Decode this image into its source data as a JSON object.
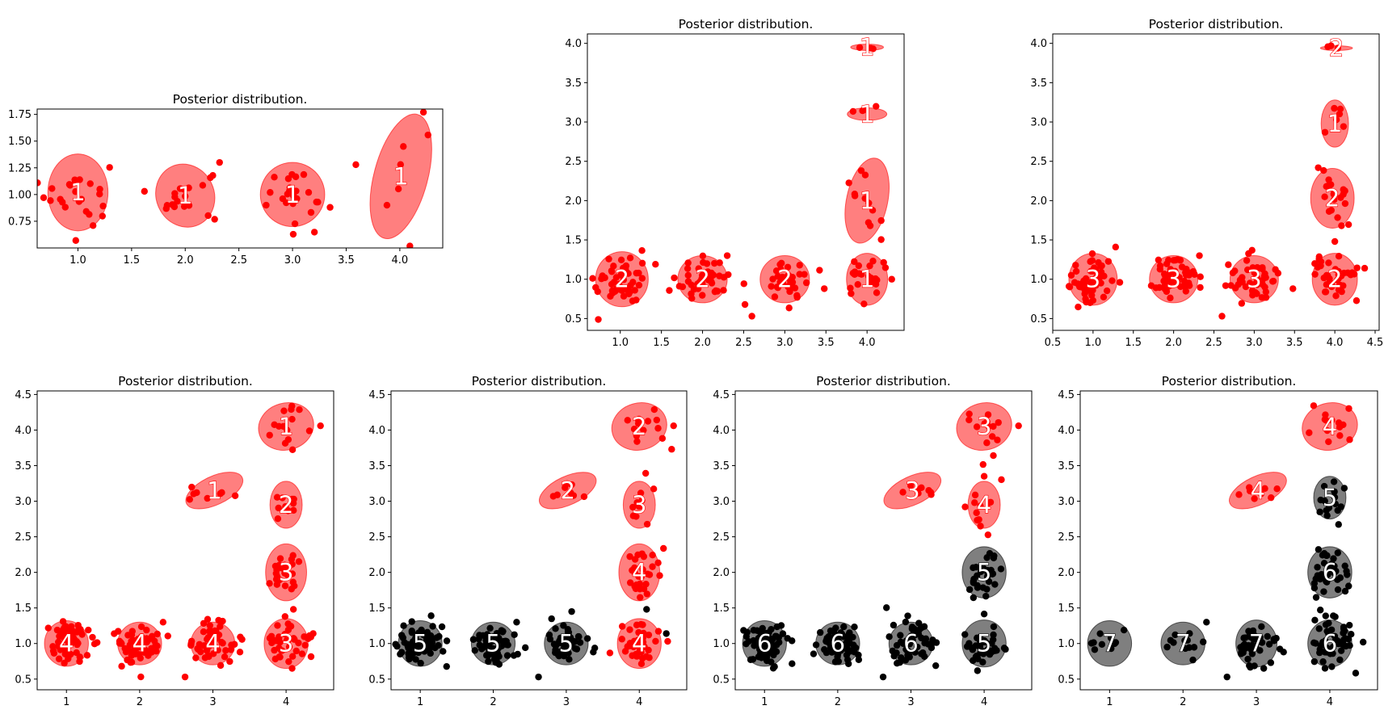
{
  "figure": {
    "title": "Posterior distribution.",
    "colors": {
      "red": "#ff0000",
      "black": "#000000",
      "ellipse_red": "#ff0000",
      "ellipse_black": "#000000",
      "frame": "#000000",
      "label_text": "#ffffff"
    }
  },
  "chart_data": [
    {
      "type": "scatter",
      "title": "Posterior distribution.",
      "xlim": [
        0.62,
        4.4
      ],
      "ylim": [
        0.5,
        1.8
      ],
      "xticks": [
        1.0,
        1.5,
        2.0,
        2.5,
        3.0,
        3.5,
        4.0
      ],
      "xtick_labels": [
        "1.0",
        "1.5",
        "2.0",
        "2.5",
        "3.0",
        "3.5",
        "4.0"
      ],
      "yticks": [
        0.75,
        1.0,
        1.25,
        1.5,
        1.75
      ],
      "ytick_labels": [
        "0.75",
        "1.00",
        "1.25",
        "1.50",
        "1.75"
      ],
      "clusters": [
        {
          "label": "1",
          "color": "red",
          "cx": 1.0,
          "cy": 1.02,
          "rx": 0.28,
          "ry": 0.36,
          "angle": 0,
          "n": 24,
          "sx": 0.15,
          "sy": 0.15
        },
        {
          "label": "1",
          "color": "red",
          "cx": 2.0,
          "cy": 0.99,
          "rx": 0.27,
          "ry": 0.3,
          "angle": -25,
          "n": 18,
          "sx": 0.15,
          "sy": 0.14
        },
        {
          "label": "1",
          "color": "red",
          "cx": 3.0,
          "cy": 1.0,
          "rx": 0.3,
          "ry": 0.3,
          "angle": 0,
          "n": 26,
          "sx": 0.14,
          "sy": 0.13
        },
        {
          "label": "1",
          "color": "red",
          "cx": 4.01,
          "cy": 1.17,
          "rx": 0.25,
          "ry": 0.6,
          "angle": 15,
          "n": 6,
          "sx": 0.12,
          "sy": 0.3
        }
      ],
      "extra_points": [
        [
          1.62,
          1.03
        ],
        [
          2.32,
          1.3
        ],
        [
          0.98,
          0.57
        ],
        [
          3.35,
          0.88
        ],
        [
          4.22,
          1.77
        ],
        [
          3.88,
          0.9
        ]
      ]
    },
    {
      "type": "scatter",
      "title": "Posterior distribution.",
      "xlim": [
        0.6,
        4.45
      ],
      "ylim": [
        0.35,
        4.12
      ],
      "xticks": [
        1.0,
        1.5,
        2.0,
        2.5,
        3.0,
        3.5,
        4.0
      ],
      "xtick_labels": [
        "1.0",
        "1.5",
        "2.0",
        "2.5",
        "3.0",
        "3.5",
        "4.0"
      ],
      "yticks": [
        0.5,
        1.0,
        1.5,
        2.0,
        2.5,
        3.0,
        3.5,
        4.0
      ],
      "ytick_labels": [
        "0.5",
        "1.0",
        "1.5",
        "2.0",
        "2.5",
        "3.0",
        "3.5",
        "4.0"
      ],
      "clusters": [
        {
          "label": "2",
          "color": "red",
          "cx": 1.02,
          "cy": 1.0,
          "rx": 0.32,
          "ry": 0.35,
          "angle": 0,
          "n": 48,
          "sx": 0.16,
          "sy": 0.17
        },
        {
          "label": "2",
          "color": "red",
          "cx": 2.0,
          "cy": 1.0,
          "rx": 0.3,
          "ry": 0.3,
          "angle": 0,
          "n": 44,
          "sx": 0.16,
          "sy": 0.14
        },
        {
          "label": "2",
          "color": "red",
          "cx": 3.0,
          "cy": 1.0,
          "rx": 0.3,
          "ry": 0.3,
          "angle": 0,
          "n": 36,
          "sx": 0.15,
          "sy": 0.14
        },
        {
          "label": "1",
          "color": "red",
          "cx": 4.0,
          "cy": 1.0,
          "rx": 0.25,
          "ry": 0.33,
          "angle": 0,
          "n": 22,
          "sx": 0.13,
          "sy": 0.15
        },
        {
          "label": "1",
          "color": "red",
          "cx": 4.0,
          "cy": 2.0,
          "rx": 0.25,
          "ry": 0.55,
          "angle": 12,
          "n": 12,
          "sx": 0.1,
          "sy": 0.3
        },
        {
          "label": "1",
          "color": "red",
          "cx": 4.0,
          "cy": 3.1,
          "rx": 0.24,
          "ry": 0.08,
          "angle": 0,
          "n": 4,
          "sx": 0.1,
          "sy": 0.04
        },
        {
          "label": "1",
          "color": "red",
          "cx": 4.0,
          "cy": 3.95,
          "rx": 0.2,
          "ry": 0.04,
          "angle": 0,
          "n": 3,
          "sx": 0.08,
          "sy": 0.02
        }
      ],
      "extra_points": [
        [
          2.6,
          0.53
        ],
        [
          2.3,
          1.3
        ],
        [
          3.48,
          0.88
        ],
        [
          4.3,
          1.0
        ]
      ]
    },
    {
      "type": "scatter",
      "title": "Posterior distribution.",
      "xlim": [
        0.5,
        4.55
      ],
      "ylim": [
        0.35,
        4.12
      ],
      "xticks": [
        0.5,
        1.0,
        1.5,
        2.0,
        2.5,
        3.0,
        3.5,
        4.0,
        4.5
      ],
      "xtick_labels": [
        "0.5",
        "1.0",
        "1.5",
        "2.0",
        "2.5",
        "3.0",
        "3.5",
        "4.0",
        "4.5"
      ],
      "yticks": [
        0.5,
        1.0,
        1.5,
        2.0,
        2.5,
        3.0,
        3.5,
        4.0
      ],
      "ytick_labels": [
        "0.5",
        "1.0",
        "1.5",
        "2.0",
        "2.5",
        "3.0",
        "3.5",
        "4.0"
      ],
      "clusters": [
        {
          "label": "3",
          "color": "red",
          "cx": 1.0,
          "cy": 1.0,
          "rx": 0.3,
          "ry": 0.33,
          "angle": 0,
          "n": 60,
          "sx": 0.15,
          "sy": 0.16
        },
        {
          "label": "3",
          "color": "red",
          "cx": 2.0,
          "cy": 1.0,
          "rx": 0.3,
          "ry": 0.3,
          "angle": 0,
          "n": 56,
          "sx": 0.15,
          "sy": 0.14
        },
        {
          "label": "3",
          "color": "red",
          "cx": 3.0,
          "cy": 1.0,
          "rx": 0.3,
          "ry": 0.3,
          "angle": 0,
          "n": 48,
          "sx": 0.15,
          "sy": 0.14
        },
        {
          "label": "2",
          "color": "red",
          "cx": 4.0,
          "cy": 1.0,
          "rx": 0.28,
          "ry": 0.33,
          "angle": 0,
          "n": 38,
          "sx": 0.14,
          "sy": 0.15
        },
        {
          "label": "2",
          "color": "red",
          "cx": 3.97,
          "cy": 2.03,
          "rx": 0.27,
          "ry": 0.38,
          "angle": 0,
          "n": 22,
          "sx": 0.12,
          "sy": 0.2
        },
        {
          "label": "1",
          "color": "red",
          "cx": 4.0,
          "cy": 2.98,
          "rx": 0.17,
          "ry": 0.3,
          "angle": 0,
          "n": 6,
          "sx": 0.07,
          "sy": 0.14
        },
        {
          "label": "2",
          "color": "red",
          "cx": 4.02,
          "cy": 3.94,
          "rx": 0.2,
          "ry": 0.03,
          "angle": 0,
          "n": 3,
          "sx": 0.08,
          "sy": 0.02
        }
      ],
      "extra_points": [
        [
          2.6,
          0.53
        ],
        [
          2.32,
          1.3
        ],
        [
          3.48,
          0.88
        ],
        [
          4.37,
          1.14
        ],
        [
          4.0,
          1.48
        ]
      ]
    },
    {
      "type": "scatter",
      "title": "Posterior distribution.",
      "xlim": [
        0.6,
        4.65
      ],
      "ylim": [
        0.35,
        4.55
      ],
      "xticks": [
        1,
        2,
        3,
        4
      ],
      "xtick_labels": [
        "1",
        "2",
        "3",
        "4"
      ],
      "yticks": [
        0.5,
        1.0,
        1.5,
        2.0,
        2.5,
        3.0,
        3.5,
        4.0,
        4.5
      ],
      "ytick_labels": [
        "0.5",
        "1.0",
        "1.5",
        "2.0",
        "2.5",
        "3.0",
        "3.5",
        "4.0",
        "4.5"
      ],
      "clusters": [
        {
          "label": "4",
          "color": "red",
          "cx": 1.0,
          "cy": 1.0,
          "rx": 0.3,
          "ry": 0.32,
          "angle": 0,
          "n": 70,
          "sx": 0.15,
          "sy": 0.15
        },
        {
          "label": "4",
          "color": "red",
          "cx": 2.0,
          "cy": 1.0,
          "rx": 0.3,
          "ry": 0.3,
          "angle": 0,
          "n": 60,
          "sx": 0.15,
          "sy": 0.14
        },
        {
          "label": "4",
          "color": "red",
          "cx": 3.0,
          "cy": 1.0,
          "rx": 0.3,
          "ry": 0.3,
          "angle": 0,
          "n": 52,
          "sx": 0.15,
          "sy": 0.14
        },
        {
          "label": "3",
          "color": "red",
          "cx": 4.0,
          "cy": 1.0,
          "rx": 0.3,
          "ry": 0.35,
          "angle": 0,
          "n": 40,
          "sx": 0.14,
          "sy": 0.15
        },
        {
          "label": "3",
          "color": "red",
          "cx": 4.0,
          "cy": 2.0,
          "rx": 0.28,
          "ry": 0.4,
          "angle": 0,
          "n": 28,
          "sx": 0.12,
          "sy": 0.18
        },
        {
          "label": "2",
          "color": "red",
          "cx": 4.0,
          "cy": 2.95,
          "rx": 0.22,
          "ry": 0.33,
          "angle": 0,
          "n": 10,
          "sx": 0.09,
          "sy": 0.14
        },
        {
          "label": "1",
          "color": "red",
          "cx": 4.0,
          "cy": 4.05,
          "rx": 0.38,
          "ry": 0.33,
          "angle": -15,
          "n": 14,
          "sx": 0.15,
          "sy": 0.15
        },
        {
          "label": "1",
          "color": "red",
          "cx": 3.02,
          "cy": 3.15,
          "rx": 0.42,
          "ry": 0.2,
          "angle": -25,
          "n": 8,
          "sx": 0.18,
          "sy": 0.08
        }
      ],
      "extra_points": [
        [
          2.62,
          0.53
        ],
        [
          2.32,
          1.3
        ],
        [
          3.37,
          0.88
        ],
        [
          4.37,
          1.14
        ],
        [
          4.1,
          1.48
        ],
        [
          4.47,
          4.06
        ]
      ]
    },
    {
      "type": "scatter",
      "title": "Posterior distribution.",
      "xlim": [
        0.6,
        4.65
      ],
      "ylim": [
        0.35,
        4.55
      ],
      "xticks": [
        1,
        2,
        3,
        4
      ],
      "xtick_labels": [
        "1",
        "2",
        "3",
        "4"
      ],
      "yticks": [
        0.5,
        1.0,
        1.5,
        2.0,
        2.5,
        3.0,
        3.5,
        4.0,
        4.5
      ],
      "ytick_labels": [
        "0.5",
        "1.0",
        "1.5",
        "2.0",
        "2.5",
        "3.0",
        "3.5",
        "4.0",
        "4.5"
      ],
      "clusters": [
        {
          "label": "5",
          "color": "black",
          "cx": 1.0,
          "cy": 1.0,
          "rx": 0.3,
          "ry": 0.32,
          "angle": 0,
          "n": 70,
          "sx": 0.15,
          "sy": 0.15
        },
        {
          "label": "5",
          "color": "black",
          "cx": 2.0,
          "cy": 1.0,
          "rx": 0.3,
          "ry": 0.3,
          "angle": 0,
          "n": 60,
          "sx": 0.15,
          "sy": 0.14
        },
        {
          "label": "5",
          "color": "black",
          "cx": 3.0,
          "cy": 1.0,
          "rx": 0.3,
          "ry": 0.3,
          "angle": 0,
          "n": 52,
          "sx": 0.15,
          "sy": 0.14
        },
        {
          "label": "4",
          "color": "red",
          "cx": 4.0,
          "cy": 1.0,
          "rx": 0.3,
          "ry": 0.35,
          "angle": 0,
          "n": 40,
          "sx": 0.14,
          "sy": 0.15
        },
        {
          "label": "4",
          "color": "red",
          "cx": 4.0,
          "cy": 2.0,
          "rx": 0.28,
          "ry": 0.4,
          "angle": 0,
          "n": 28,
          "sx": 0.12,
          "sy": 0.18
        },
        {
          "label": "3",
          "color": "red",
          "cx": 4.0,
          "cy": 2.95,
          "rx": 0.22,
          "ry": 0.33,
          "angle": 0,
          "n": 10,
          "sx": 0.09,
          "sy": 0.14
        },
        {
          "label": "2",
          "color": "red",
          "cx": 4.0,
          "cy": 4.05,
          "rx": 0.38,
          "ry": 0.33,
          "angle": -15,
          "n": 14,
          "sx": 0.15,
          "sy": 0.15
        },
        {
          "label": "2",
          "color": "red",
          "cx": 3.02,
          "cy": 3.15,
          "rx": 0.42,
          "ry": 0.2,
          "angle": -25,
          "n": 8,
          "sx": 0.18,
          "sy": 0.08
        }
      ],
      "extra_points": [
        [
          2.62,
          0.53
        ],
        [
          2.32,
          1.3
        ],
        [
          3.37,
          0.88
        ],
        [
          4.37,
          1.14
        ],
        [
          4.1,
          1.48
        ],
        [
          4.47,
          4.06
        ]
      ]
    },
    {
      "type": "scatter",
      "title": "Posterior distribution.",
      "xlim": [
        0.6,
        4.65
      ],
      "ylim": [
        0.35,
        4.55
      ],
      "xticks": [
        1,
        2,
        3,
        4
      ],
      "xtick_labels": [
        "1",
        "2",
        "3",
        "4"
      ],
      "yticks": [
        0.5,
        1.0,
        1.5,
        2.0,
        2.5,
        3.0,
        3.5,
        4.0,
        4.5
      ],
      "ytick_labels": [
        "0.5",
        "1.0",
        "1.5",
        "2.0",
        "2.5",
        "3.0",
        "3.5",
        "4.0",
        "4.5"
      ],
      "clusters": [
        {
          "label": "6",
          "color": "black",
          "cx": 1.0,
          "cy": 1.0,
          "rx": 0.3,
          "ry": 0.32,
          "angle": 0,
          "n": 70,
          "sx": 0.15,
          "sy": 0.15
        },
        {
          "label": "6",
          "color": "black",
          "cx": 2.0,
          "cy": 1.0,
          "rx": 0.3,
          "ry": 0.3,
          "angle": 0,
          "n": 60,
          "sx": 0.15,
          "sy": 0.14
        },
        {
          "label": "6",
          "color": "black",
          "cx": 3.0,
          "cy": 1.0,
          "rx": 0.3,
          "ry": 0.3,
          "angle": 0,
          "n": 52,
          "sx": 0.15,
          "sy": 0.14
        },
        {
          "label": "5",
          "color": "black",
          "cx": 4.0,
          "cy": 1.0,
          "rx": 0.3,
          "ry": 0.33,
          "angle": 0,
          "n": 40,
          "sx": 0.14,
          "sy": 0.15
        },
        {
          "label": "5",
          "color": "black",
          "cx": 4.0,
          "cy": 2.0,
          "rx": 0.3,
          "ry": 0.36,
          "angle": 0,
          "n": 28,
          "sx": 0.13,
          "sy": 0.17
        },
        {
          "label": "4",
          "color": "red",
          "cx": 4.0,
          "cy": 2.95,
          "rx": 0.22,
          "ry": 0.33,
          "angle": 0,
          "n": 10,
          "sx": 0.09,
          "sy": 0.14
        },
        {
          "label": "3",
          "color": "red",
          "cx": 4.0,
          "cy": 4.05,
          "rx": 0.38,
          "ry": 0.33,
          "angle": -15,
          "n": 14,
          "sx": 0.15,
          "sy": 0.15
        },
        {
          "label": "3",
          "color": "red",
          "cx": 3.02,
          "cy": 3.15,
          "rx": 0.42,
          "ry": 0.2,
          "angle": -25,
          "n": 8,
          "sx": 0.18,
          "sy": 0.08
        }
      ],
      "extra_points": [
        [
          2.62,
          0.53
        ],
        [
          4.47,
          4.06
        ],
        [
          4.0,
          3.35
        ],
        [
          3.95,
          2.65
        ],
        [
          3.74,
          2.92
        ]
      ]
    },
    {
      "type": "scatter",
      "title": "Posterior distribution.",
      "xlim": [
        0.6,
        4.65
      ],
      "ylim": [
        0.35,
        4.55
      ],
      "xticks": [
        1,
        2,
        3,
        4
      ],
      "xtick_labels": [
        "1",
        "2",
        "3",
        "4"
      ],
      "yticks": [
        0.5,
        1.0,
        1.5,
        2.0,
        2.5,
        3.0,
        3.5,
        4.0,
        4.5
      ],
      "ytick_labels": [
        "0.5",
        "1.0",
        "1.5",
        "2.0",
        "2.5",
        "3.0",
        "3.5",
        "4.0",
        "4.5"
      ],
      "clusters": [
        {
          "label": "7",
          "color": "black",
          "cx": 1.0,
          "cy": 1.0,
          "rx": 0.3,
          "ry": 0.32,
          "angle": 0,
          "n": 10,
          "sx": 0.15,
          "sy": 0.12
        },
        {
          "label": "7",
          "color": "black",
          "cx": 2.0,
          "cy": 1.0,
          "rx": 0.3,
          "ry": 0.3,
          "angle": 0,
          "n": 12,
          "sx": 0.15,
          "sy": 0.12
        },
        {
          "label": "7",
          "color": "black",
          "cx": 3.0,
          "cy": 1.0,
          "rx": 0.28,
          "ry": 0.33,
          "angle": 0,
          "n": 40,
          "sx": 0.14,
          "sy": 0.15
        },
        {
          "label": "6",
          "color": "black",
          "cx": 4.0,
          "cy": 1.0,
          "rx": 0.3,
          "ry": 0.33,
          "angle": 0,
          "n": 50,
          "sx": 0.14,
          "sy": 0.15
        },
        {
          "label": "6",
          "color": "black",
          "cx": 4.0,
          "cy": 2.0,
          "rx": 0.3,
          "ry": 0.36,
          "angle": 0,
          "n": 40,
          "sx": 0.13,
          "sy": 0.17
        },
        {
          "label": "5",
          "color": "black",
          "cx": 4.0,
          "cy": 3.05,
          "rx": 0.22,
          "ry": 0.3,
          "angle": 0,
          "n": 14,
          "sx": 0.1,
          "sy": 0.14
        },
        {
          "label": "4",
          "color": "red",
          "cx": 4.0,
          "cy": 4.05,
          "rx": 0.38,
          "ry": 0.33,
          "angle": -15,
          "n": 14,
          "sx": 0.15,
          "sy": 0.15
        },
        {
          "label": "4",
          "color": "red",
          "cx": 3.02,
          "cy": 3.15,
          "rx": 0.42,
          "ry": 0.2,
          "angle": -25,
          "n": 8,
          "sx": 0.18,
          "sy": 0.08
        }
      ],
      "extra_points": [
        [
          2.6,
          0.53
        ],
        [
          2.32,
          1.3
        ],
        [
          3.37,
          0.88
        ]
      ]
    }
  ]
}
